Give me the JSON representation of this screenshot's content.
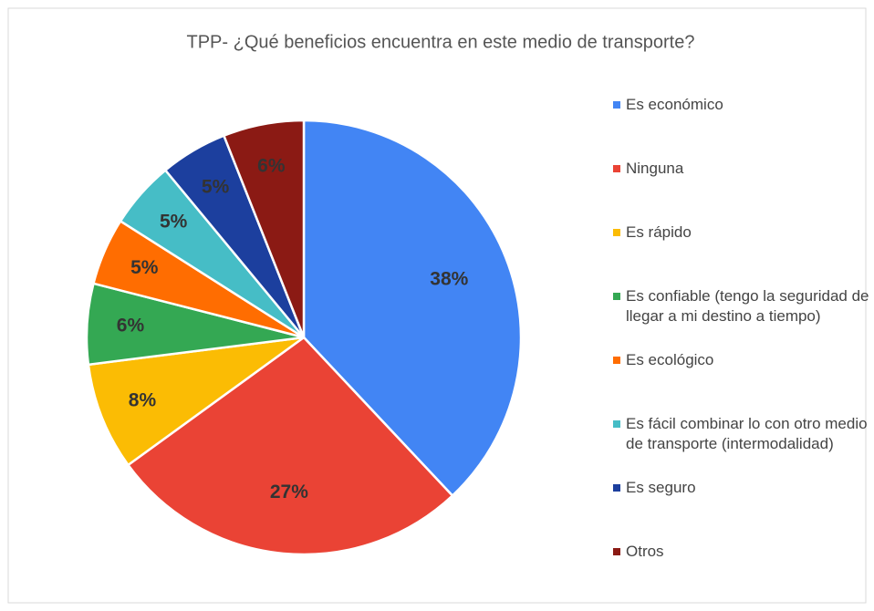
{
  "chart_data": {
    "type": "pie",
    "title": "TPP- ¿Qué beneficios encuentra en este medio de transporte?",
    "categories": [
      "Es económico",
      "Ninguna",
      "Es rápido",
      "Es confiable (tengo la seguridad de llegar a mi destino a tiempo)",
      "Es ecológico",
      "Es fácil combinar lo con otro medio de transporte (intermodalidad)",
      "Es seguro",
      "Otros"
    ],
    "values": [
      38,
      27,
      8,
      6,
      5,
      5,
      5,
      6
    ],
    "value_labels": [
      "38%",
      "27%",
      "8%",
      "6%",
      "5%",
      "5%",
      "5%",
      "6%"
    ],
    "colors": [
      "#4285f4",
      "#ea4335",
      "#fbbc04",
      "#34a853",
      "#ff6d01",
      "#46bdc6",
      "#1c3f9e",
      "#8b1a14"
    ],
    "legend": "right"
  }
}
